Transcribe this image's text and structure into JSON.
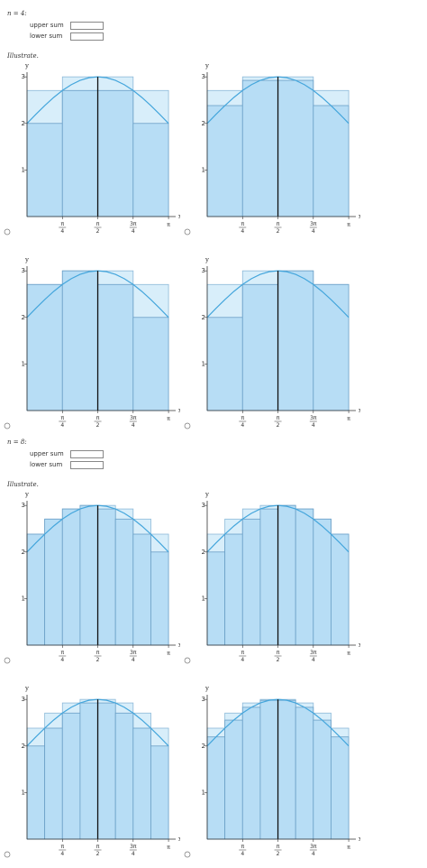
{
  "sections": [
    {
      "label": "n = 4:",
      "upper_label": "upper sum",
      "lower_label": "lower sum",
      "illustrate": "Illustrate.",
      "bins": [
        0,
        0.7854,
        1.5708,
        2.3562,
        3.1416
      ],
      "upper": [
        2.707,
        3,
        3,
        2.707
      ],
      "options": [
        [
          2,
          2.707,
          2.707,
          2
        ],
        [
          2.383,
          2.924,
          2.924,
          2.383
        ],
        [
          2.707,
          3,
          2.707,
          2
        ],
        [
          2,
          2.707,
          3,
          2.707
        ]
      ]
    },
    {
      "label": "n = 8:",
      "upper_label": "upper sum",
      "lower_label": "lower sum",
      "illustrate": "Illustrate.",
      "bins": [
        0,
        0.3927,
        0.7854,
        1.1781,
        1.5708,
        1.9635,
        2.3562,
        2.7489,
        3.1416
      ],
      "upper": [
        2.383,
        2.707,
        2.924,
        3,
        3,
        2.924,
        2.707,
        2.383
      ],
      "options": [
        [
          2.383,
          2.707,
          2.924,
          3,
          2.924,
          2.707,
          2.383,
          2
        ],
        [
          2,
          2.383,
          2.707,
          2.924,
          3,
          2.924,
          2.707,
          2.383
        ],
        [
          2,
          2.383,
          2.707,
          2.924,
          2.924,
          2.707,
          2.383,
          2
        ],
        [
          2.195,
          2.556,
          2.831,
          2.981,
          2.981,
          2.831,
          2.556,
          2.195
        ]
      ]
    }
  ],
  "axes": {
    "x_label": "x",
    "y_label": "y",
    "xlim": [
      0,
      3.3
    ],
    "ylim": [
      0,
      3.1
    ],
    "yticks": [
      1,
      2,
      3
    ],
    "xticks": [
      {
        "value": 0.7854,
        "num": "π",
        "den": "4"
      },
      {
        "value": 1.5708,
        "num": "π",
        "den": "2"
      },
      {
        "value": 2.3562,
        "num": "3π",
        "den": "4"
      },
      {
        "value": 3.1416,
        "label": "π"
      }
    ]
  },
  "curve": {
    "x": [
      0,
      0.1963,
      0.3927,
      0.589,
      0.7854,
      0.9817,
      1.1781,
      1.3744,
      1.5708,
      1.7671,
      1.9635,
      2.1598,
      2.3562,
      2.5525,
      2.7489,
      2.9452,
      3.1416
    ],
    "y": [
      2,
      2.1951,
      2.3827,
      2.5556,
      2.7071,
      2.8315,
      2.9239,
      2.9808,
      3,
      2.9808,
      2.9239,
      2.8315,
      2.7071,
      2.5556,
      2.3827,
      2.1951,
      2
    ]
  }
}
